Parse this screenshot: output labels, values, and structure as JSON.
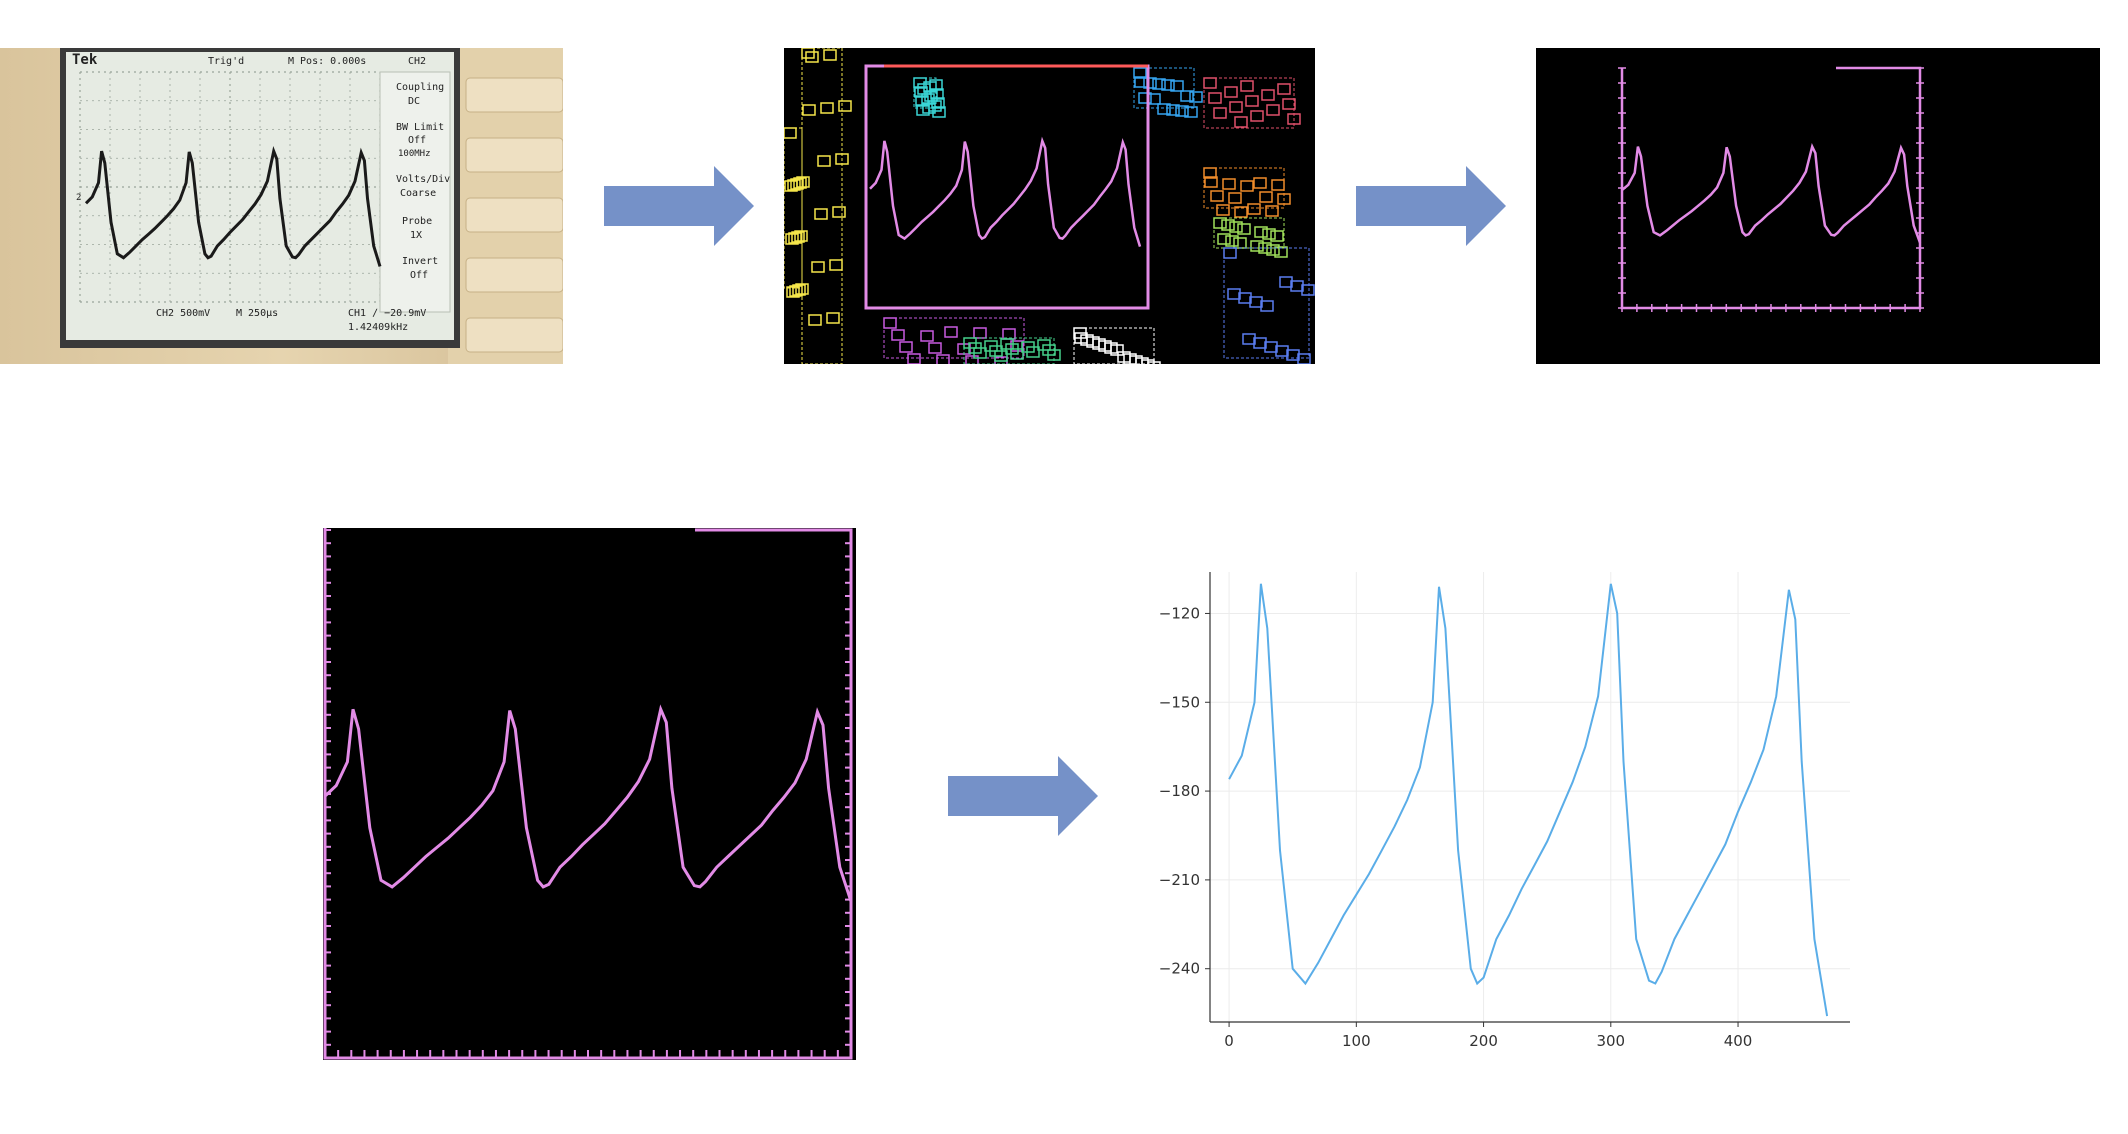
{
  "scope": {
    "brand": "Tek",
    "trigger": "Trig'd",
    "mpos": "M Pos: 0.000s",
    "channel": "CH2",
    "menu": [
      {
        "title": "Coupling",
        "value": "DC"
      },
      {
        "title": "BW Limit",
        "value": "Off",
        "sub": "100MHz"
      },
      {
        "title": "Volts/Div",
        "value": "Coarse"
      },
      {
        "title": "Probe",
        "value": "1X"
      },
      {
        "title": "Invert",
        "value": "Off"
      }
    ],
    "ch2_scale": "CH2  500mV",
    "time_scale": "M 250µs",
    "ch1_reading": "CH1 ∕ −20.9mV",
    "frequency": "1.42409kHz",
    "marker": "2"
  },
  "colors": {
    "arrow": "#7591C8",
    "trace": "#E28BE6",
    "plot_line": "#5AADE8",
    "screen_bg": "#E6EBE3",
    "scope_trace": "#1A1A1A"
  },
  "chart_data": {
    "type": "line",
    "x": [
      0,
      10,
      20,
      25,
      30,
      40,
      50,
      60,
      70,
      80,
      90,
      100,
      110,
      120,
      130,
      140,
      150,
      160,
      165,
      170,
      180,
      190,
      195,
      200,
      210,
      220,
      230,
      240,
      250,
      260,
      270,
      280,
      290,
      300,
      305,
      310,
      320,
      330,
      335,
      340,
      350,
      360,
      370,
      380,
      390,
      400,
      410,
      420,
      430,
      440,
      445,
      450,
      460,
      470
    ],
    "y": [
      -176,
      -168,
      -150,
      -110,
      -125,
      -200,
      -240,
      -245,
      -238,
      -230,
      -222,
      -215,
      -208,
      -200,
      -192,
      -183,
      -172,
      -150,
      -111,
      -125,
      -200,
      -240,
      -245,
      -243,
      -230,
      -222,
      -213,
      -205,
      -197,
      -187,
      -177,
      -165,
      -148,
      -110,
      -120,
      -170,
      -230,
      -244,
      -245,
      -241,
      -230,
      -222,
      -214,
      -206,
      -198,
      -187,
      -177,
      -166,
      -148,
      -112,
      -122,
      -170,
      -230,
      -256
    ],
    "xticks": [
      0,
      100,
      200,
      300,
      400
    ],
    "yticks": [
      -120,
      -150,
      -180,
      -210,
      -240
    ],
    "xlim": [
      -15,
      488
    ],
    "ylim": [
      -258,
      -106
    ],
    "grid": true,
    "title": "",
    "xlabel": "",
    "ylabel": ""
  }
}
